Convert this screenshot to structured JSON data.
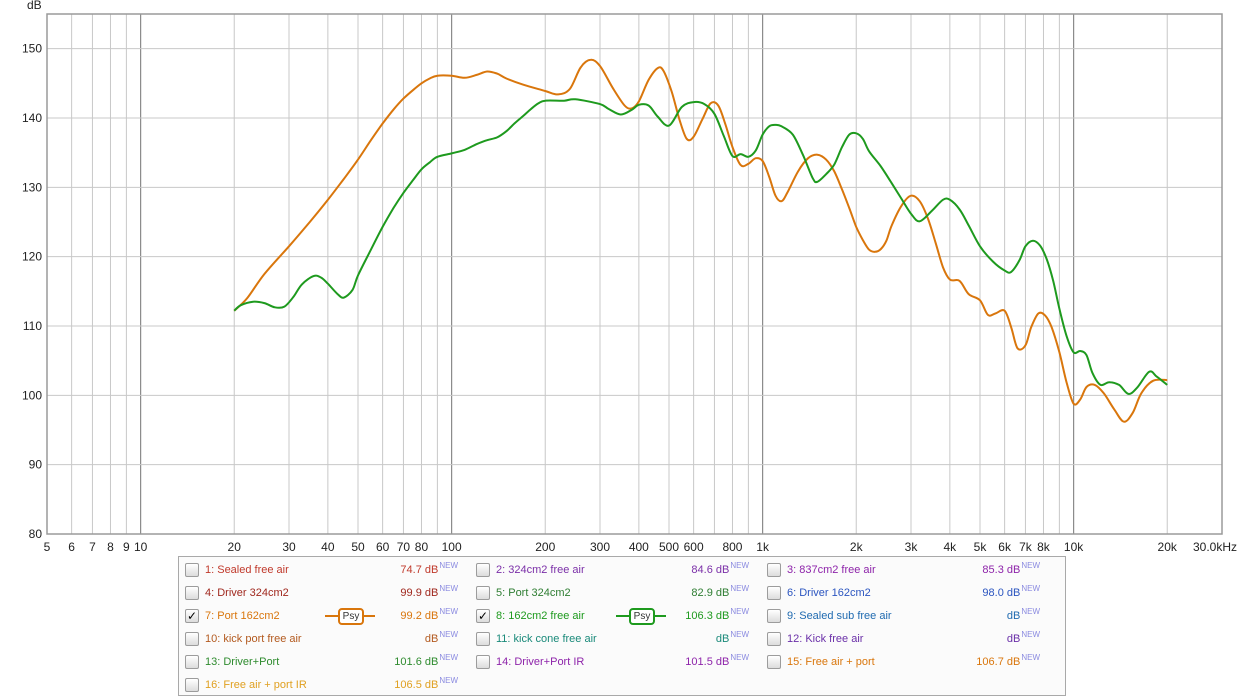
{
  "chart_data": {
    "type": "line",
    "xscale": "log",
    "xlim": [
      5,
      30000
    ],
    "ylim": [
      80,
      155
    ],
    "ylabel": "dB",
    "x_tick_labels": [
      {
        "x": 5,
        "label": "5"
      },
      {
        "x": 6,
        "label": "6"
      },
      {
        "x": 7,
        "label": "7"
      },
      {
        "x": 8,
        "label": "8"
      },
      {
        "x": 9,
        "label": "9"
      },
      {
        "x": 10,
        "label": "10"
      },
      {
        "x": 20,
        "label": "20"
      },
      {
        "x": 30,
        "label": "30"
      },
      {
        "x": 40,
        "label": "40"
      },
      {
        "x": 50,
        "label": "50"
      },
      {
        "x": 60,
        "label": "60"
      },
      {
        "x": 70,
        "label": "70"
      },
      {
        "x": 80,
        "label": "80"
      },
      {
        "x": 100,
        "label": "100"
      },
      {
        "x": 200,
        "label": "200"
      },
      {
        "x": 300,
        "label": "300"
      },
      {
        "x": 400,
        "label": "400"
      },
      {
        "x": 500,
        "label": "500"
      },
      {
        "x": 600,
        "label": "600"
      },
      {
        "x": 800,
        "label": "800"
      },
      {
        "x": 1000,
        "label": "1k"
      },
      {
        "x": 2000,
        "label": "2k"
      },
      {
        "x": 3000,
        "label": "3k"
      },
      {
        "x": 4000,
        "label": "4k"
      },
      {
        "x": 5000,
        "label": "5k"
      },
      {
        "x": 6000,
        "label": "6k"
      },
      {
        "x": 7000,
        "label": "7k"
      },
      {
        "x": 8000,
        "label": "8k"
      },
      {
        "x": 10000,
        "label": "10k"
      },
      {
        "x": 20000,
        "label": "20k"
      },
      {
        "x": 30000,
        "label": "30.0kHz"
      }
    ],
    "y_ticks": [
      80,
      90,
      100,
      110,
      120,
      130,
      140,
      150
    ],
    "major_x_grid": [
      10,
      100,
      1000,
      10000
    ],
    "grid": true,
    "series": [
      {
        "name": "7: Port 162cm2",
        "color": "#d9760c",
        "points": [
          [
            20,
            112.2
          ],
          [
            22,
            114
          ],
          [
            25,
            117.5
          ],
          [
            30,
            121.5
          ],
          [
            35,
            125
          ],
          [
            40,
            128.2
          ],
          [
            45,
            131.2
          ],
          [
            50,
            134
          ],
          [
            55,
            136.8
          ],
          [
            60,
            139.2
          ],
          [
            65,
            141.2
          ],
          [
            70,
            142.8
          ],
          [
            75,
            144
          ],
          [
            80,
            145
          ],
          [
            85,
            145.7
          ],
          [
            90,
            146.1
          ],
          [
            100,
            146.1
          ],
          [
            110,
            145.8
          ],
          [
            120,
            146.2
          ],
          [
            130,
            146.7
          ],
          [
            140,
            146.4
          ],
          [
            150,
            145.7
          ],
          [
            170,
            144.8
          ],
          [
            200,
            143.9
          ],
          [
            220,
            143.4
          ],
          [
            240,
            144.2
          ],
          [
            260,
            147.3
          ],
          [
            280,
            148.4
          ],
          [
            300,
            147.5
          ],
          [
            330,
            144.3
          ],
          [
            360,
            141.8
          ],
          [
            380,
            141.4
          ],
          [
            400,
            142.4
          ],
          [
            430,
            145.5
          ],
          [
            460,
            147.2
          ],
          [
            480,
            146.8
          ],
          [
            510,
            143.8
          ],
          [
            540,
            139.8
          ],
          [
            570,
            137
          ],
          [
            600,
            137.3
          ],
          [
            640,
            139.8
          ],
          [
            680,
            142.1
          ],
          [
            720,
            141.8
          ],
          [
            760,
            139
          ],
          [
            800,
            135.8
          ],
          [
            850,
            133.2
          ],
          [
            900,
            133.4
          ],
          [
            950,
            134.2
          ],
          [
            1000,
            133.8
          ],
          [
            1050,
            131.5
          ],
          [
            1100,
            128.8
          ],
          [
            1150,
            128
          ],
          [
            1200,
            129.2
          ],
          [
            1300,
            132.3
          ],
          [
            1400,
            134.2
          ],
          [
            1500,
            134.7
          ],
          [
            1600,
            134
          ],
          [
            1700,
            132.3
          ],
          [
            1800,
            129.7
          ],
          [
            1900,
            127
          ],
          [
            2000,
            124.3
          ],
          [
            2100,
            122.4
          ],
          [
            2200,
            121
          ],
          [
            2300,
            120.7
          ],
          [
            2400,
            121.1
          ],
          [
            2500,
            122.3
          ],
          [
            2600,
            124.5
          ],
          [
            2800,
            127.4
          ],
          [
            3000,
            128.8
          ],
          [
            3200,
            128
          ],
          [
            3400,
            125.5
          ],
          [
            3600,
            122
          ],
          [
            3800,
            118.5
          ],
          [
            4000,
            116.7
          ],
          [
            4300,
            116.5
          ],
          [
            4600,
            114.6
          ],
          [
            5000,
            113.7
          ],
          [
            5300,
            111.6
          ],
          [
            5600,
            111.8
          ],
          [
            6000,
            112.2
          ],
          [
            6300,
            109.8
          ],
          [
            6600,
            106.8
          ],
          [
            7000,
            107.2
          ],
          [
            7300,
            109.8
          ],
          [
            7700,
            111.8
          ],
          [
            8100,
            111.5
          ],
          [
            8500,
            109.8
          ],
          [
            9000,
            106.2
          ],
          [
            9500,
            101.8
          ],
          [
            10000,
            98.8
          ],
          [
            10500,
            99.4
          ],
          [
            11000,
            101.2
          ],
          [
            11700,
            101.5
          ],
          [
            12500,
            100.3
          ],
          [
            13500,
            98
          ],
          [
            14500,
            96.2
          ],
          [
            15500,
            97.5
          ],
          [
            16500,
            100.3
          ],
          [
            18000,
            102.1
          ],
          [
            20000,
            102.2
          ]
        ]
      },
      {
        "name": "8: 162cm2 free air",
        "color": "#1e9a1e",
        "points": [
          [
            20,
            112.2
          ],
          [
            21,
            113
          ],
          [
            23,
            113.5
          ],
          [
            25,
            113.3
          ],
          [
            27,
            112.7
          ],
          [
            29,
            112.8
          ],
          [
            31,
            114.2
          ],
          [
            33,
            116
          ],
          [
            36,
            117.2
          ],
          [
            38,
            117
          ],
          [
            40,
            116.1
          ],
          [
            43,
            114.6
          ],
          [
            45,
            114.1
          ],
          [
            48,
            115.2
          ],
          [
            50,
            117.3
          ],
          [
            55,
            121
          ],
          [
            60,
            124.3
          ],
          [
            65,
            127
          ],
          [
            70,
            129.2
          ],
          [
            75,
            131
          ],
          [
            80,
            132.6
          ],
          [
            85,
            133.6
          ],
          [
            90,
            134.4
          ],
          [
            100,
            134.9
          ],
          [
            110,
            135.4
          ],
          [
            120,
            136.2
          ],
          [
            130,
            136.8
          ],
          [
            140,
            137.2
          ],
          [
            150,
            138.1
          ],
          [
            160,
            139.3
          ],
          [
            170,
            140.3
          ],
          [
            180,
            141.3
          ],
          [
            190,
            142.1
          ],
          [
            200,
            142.5
          ],
          [
            230,
            142.5
          ],
          [
            250,
            142.7
          ],
          [
            300,
            142
          ],
          [
            320,
            141.3
          ],
          [
            350,
            140.5
          ],
          [
            380,
            141.2
          ],
          [
            400,
            141.9
          ],
          [
            430,
            141.8
          ],
          [
            460,
            140.2
          ],
          [
            500,
            138.9
          ],
          [
            550,
            141.6
          ],
          [
            600,
            142.3
          ],
          [
            650,
            142
          ],
          [
            700,
            140.6
          ],
          [
            750,
            137.4
          ],
          [
            800,
            134.5
          ],
          [
            850,
            134.8
          ],
          [
            900,
            134.4
          ],
          [
            950,
            135.3
          ],
          [
            1000,
            137.6
          ],
          [
            1050,
            138.8
          ],
          [
            1100,
            139
          ],
          [
            1150,
            138.8
          ],
          [
            1250,
            137.6
          ],
          [
            1350,
            134.6
          ],
          [
            1450,
            131.3
          ],
          [
            1500,
            130.8
          ],
          [
            1600,
            131.9
          ],
          [
            1700,
            133.3
          ],
          [
            1800,
            135.8
          ],
          [
            1900,
            137.6
          ],
          [
            2000,
            137.8
          ],
          [
            2100,
            137
          ],
          [
            2200,
            135.2
          ],
          [
            2400,
            133
          ],
          [
            2600,
            130.6
          ],
          [
            2800,
            128.3
          ],
          [
            3000,
            126.2
          ],
          [
            3200,
            125.1
          ],
          [
            3500,
            126.6
          ],
          [
            3800,
            128.2
          ],
          [
            4000,
            128.2
          ],
          [
            4300,
            126.8
          ],
          [
            4600,
            124.5
          ],
          [
            5000,
            121.5
          ],
          [
            5500,
            119.3
          ],
          [
            6000,
            118
          ],
          [
            6300,
            117.8
          ],
          [
            6700,
            119.5
          ],
          [
            7000,
            121.5
          ],
          [
            7400,
            122.3
          ],
          [
            7800,
            121.6
          ],
          [
            8200,
            119.6
          ],
          [
            8600,
            116.5
          ],
          [
            9000,
            112.5
          ],
          [
            9500,
            108.5
          ],
          [
            10000,
            106.2
          ],
          [
            10500,
            106.4
          ],
          [
            11000,
            105.8
          ],
          [
            11500,
            103.2
          ],
          [
            12200,
            101.5
          ],
          [
            13000,
            101.9
          ],
          [
            14000,
            101.5
          ],
          [
            15000,
            100.2
          ],
          [
            16000,
            101.1
          ],
          [
            17500,
            103.4
          ],
          [
            18500,
            102.7
          ],
          [
            20000,
            101.5
          ]
        ]
      }
    ]
  },
  "legend": {
    "items": [
      {
        "label": "1: Sealed free air",
        "value": "74.7 dB",
        "new": "NEW",
        "checked": false,
        "color": "#c0392b",
        "psy": false
      },
      {
        "label": "2: 324cm2 free air",
        "value": "84.6 dB",
        "new": "NEW",
        "checked": false,
        "color": "#7b2fa8",
        "psy": false
      },
      {
        "label": "3: 837cm2 free air",
        "value": "85.3 dB",
        "new": "NEW",
        "checked": false,
        "color": "#8e24aa",
        "psy": false
      },
      {
        "label": "4: Driver 324cm2",
        "value": "99.9 dB",
        "new": "NEW",
        "checked": false,
        "color": "#a0281e",
        "psy": false
      },
      {
        "label": "5: Port 324cm2",
        "value": "82.9 dB",
        "new": "NEW",
        "checked": false,
        "color": "#2e7d32",
        "psy": false
      },
      {
        "label": "6: Driver 162cm2",
        "value": "98.0 dB",
        "new": "NEW",
        "checked": false,
        "color": "#2b55c0",
        "psy": false
      },
      {
        "label": "7: Port 162cm2",
        "value": "99.2 dB",
        "new": "NEW",
        "checked": true,
        "color": "#d9760c",
        "psy": true,
        "psy_label": "Psy"
      },
      {
        "label": "8: 162cm2 free air",
        "value": "106.3 dB",
        "new": "NEW",
        "checked": true,
        "color": "#1e9a1e",
        "psy": true,
        "psy_label": "Psy"
      },
      {
        "label": "9: Sealed sub free air",
        "value": "dB",
        "new": "NEW",
        "checked": false,
        "color": "#1f6ab0",
        "psy": false
      },
      {
        "label": "10: kick port free air",
        "value": "dB",
        "new": "NEW",
        "checked": false,
        "color": "#b35a1f",
        "psy": false
      },
      {
        "label": "11: kick cone free air",
        "value": "dB",
        "new": "NEW",
        "checked": false,
        "color": "#1a8a7a",
        "psy": false
      },
      {
        "label": "12: Kick free air",
        "value": "dB",
        "new": "NEW",
        "checked": false,
        "color": "#6a2fa8",
        "psy": false
      },
      {
        "label": "13: Driver+Port",
        "value": "101.6 dB",
        "new": "NEW",
        "checked": false,
        "color": "#2e8b2e",
        "psy": false
      },
      {
        "label": "14: Driver+Port IR",
        "value": "101.5 dB",
        "new": "NEW",
        "checked": false,
        "color": "#8e24aa",
        "psy": false
      },
      {
        "label": "15: Free air + port",
        "value": "106.7 dB",
        "new": "NEW",
        "checked": false,
        "color": "#d9760c",
        "psy": false
      },
      {
        "label": "16: Free air + port IR",
        "value": "106.5 dB",
        "new": "NEW",
        "checked": false,
        "color": "#e0a020",
        "psy": false
      }
    ]
  }
}
